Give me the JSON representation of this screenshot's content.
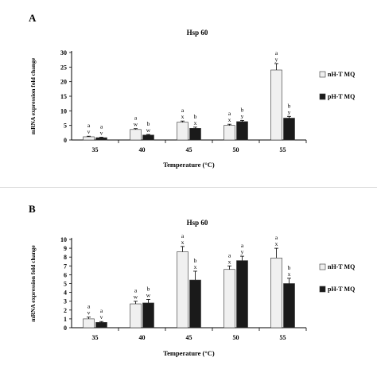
{
  "panels": [
    {
      "panel_label": "A",
      "legend": [
        "nH-T MQ",
        "pH-T MQ"
      ],
      "chart_data": {
        "type": "bar",
        "title": "Hsp 60",
        "xlabel": "Temperature (°C)",
        "ylabel": "mRNA expression fold change",
        "categories": [
          "35",
          "40",
          "45",
          "50",
          "55"
        ],
        "ylim": [
          0,
          30
        ],
        "yticks": [
          0,
          5,
          10,
          15,
          20,
          25,
          30
        ],
        "grid": false,
        "legend_position": "right",
        "series": [
          {
            "name": "nH-T MQ",
            "color": "#f0f0f0",
            "values": [
              1.1,
              3.6,
              6.1,
              5.0,
              24.0
            ],
            "errors": [
              0.2,
              0.3,
              0.4,
              0.4,
              2.2
            ],
            "labels": [
              [
                "a",
                "v"
              ],
              [
                "a",
                "w"
              ],
              [
                "a",
                "x"
              ],
              [
                "a",
                "x"
              ],
              [
                "a",
                "y"
              ]
            ]
          },
          {
            "name": "pH-T MQ",
            "color": "#1a1a1a",
            "values": [
              0.8,
              1.7,
              4.0,
              6.3,
              7.5
            ],
            "errors": [
              0.15,
              0.2,
              0.4,
              0.4,
              0.6
            ],
            "labels": [
              [
                "a",
                "v"
              ],
              [
                "b",
                "w"
              ],
              [
                "b",
                "x"
              ],
              [
                "b",
                "y"
              ],
              [
                "b",
                "y"
              ]
            ]
          }
        ]
      }
    },
    {
      "panel_label": "B",
      "legend": [
        "nH-T MQ",
        "pH-T MQ"
      ],
      "chart_data": {
        "type": "bar",
        "title": "Hsp 60",
        "xlabel": "Temperature (°C)",
        "ylabel": "mRNA expression fold change",
        "categories": [
          "35",
          "40",
          "45",
          "50",
          "55"
        ],
        "ylim": [
          0,
          10
        ],
        "yticks": [
          0,
          1,
          2,
          3,
          4,
          5,
          6,
          7,
          8,
          9,
          10
        ],
        "grid": false,
        "legend_position": "right",
        "series": [
          {
            "name": "nH-T MQ",
            "color": "#f0f0f0",
            "values": [
              1.0,
              2.7,
              8.6,
              6.6,
              7.9
            ],
            "errors": [
              0.2,
              0.3,
              0.6,
              0.4,
              1.1
            ],
            "labels": [
              [
                "a",
                "v"
              ],
              [
                "a",
                "w"
              ],
              [
                "a",
                "x"
              ],
              [
                "a",
                "x"
              ],
              [
                "a",
                "x"
              ]
            ]
          },
          {
            "name": "pH-T MQ",
            "color": "#1a1a1a",
            "values": [
              0.6,
              2.8,
              5.4,
              7.6,
              5.0
            ],
            "errors": [
              0.1,
              0.4,
              1.0,
              0.5,
              0.6
            ],
            "labels": [
              [
                "a",
                "v"
              ],
              [
                "b",
                "w"
              ],
              [
                "b",
                "x"
              ],
              [
                "a",
                "y"
              ],
              [
                "b",
                "x"
              ]
            ]
          }
        ]
      }
    }
  ]
}
